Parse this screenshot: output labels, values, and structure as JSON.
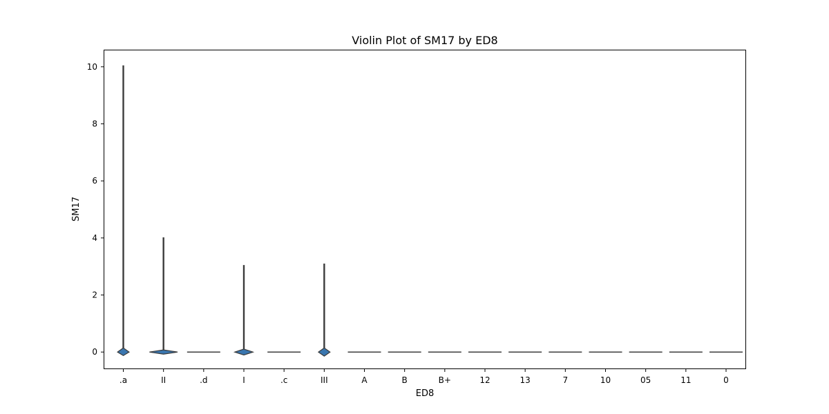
{
  "chart_data": {
    "type": "violin",
    "title": "Violin Plot of SM17 by ED8",
    "xlabel": "ED8",
    "ylabel": "SM17",
    "categories": [
      ".a",
      "II",
      ".d",
      "I",
      ".c",
      "III",
      "A",
      "B",
      "B+",
      "12",
      "13",
      "7",
      "10",
      "05",
      "11",
      "0"
    ],
    "y_ticks": [
      0,
      2,
      4,
      6,
      8,
      10
    ],
    "ylim": [
      -0.6,
      10.6
    ],
    "grid": false,
    "violins": [
      {
        "category": ".a",
        "min": 0,
        "max": 10.05,
        "bulge": 0.35,
        "bulge_low": -0.1,
        "bulge_high": 0.12
      },
      {
        "category": "II",
        "min": 0,
        "max": 4.02,
        "bulge": 0.85,
        "bulge_low": -0.05,
        "bulge_high": 0.05
      },
      {
        "category": ".d",
        "min": 0,
        "max": 0,
        "bulge": 0,
        "bulge_low": 0,
        "bulge_high": 0
      },
      {
        "category": "I",
        "min": 0,
        "max": 3.05,
        "bulge": 0.55,
        "bulge_low": -0.08,
        "bulge_high": 0.08
      },
      {
        "category": ".c",
        "min": 0,
        "max": 0,
        "bulge": 0,
        "bulge_low": 0,
        "bulge_high": 0
      },
      {
        "category": "III",
        "min": 0,
        "max": 3.1,
        "bulge": 0.35,
        "bulge_low": -0.12,
        "bulge_high": 0.12
      },
      {
        "category": "A",
        "min": 0,
        "max": 0,
        "bulge": 0,
        "bulge_low": 0,
        "bulge_high": 0
      },
      {
        "category": "B",
        "min": 0,
        "max": 0,
        "bulge": 0,
        "bulge_low": 0,
        "bulge_high": 0
      },
      {
        "category": "B+",
        "min": 0,
        "max": 0,
        "bulge": 0,
        "bulge_low": 0,
        "bulge_high": 0
      },
      {
        "category": "12",
        "min": 0,
        "max": 0,
        "bulge": 0,
        "bulge_low": 0,
        "bulge_high": 0
      },
      {
        "category": "13",
        "min": 0,
        "max": 0,
        "bulge": 0,
        "bulge_low": 0,
        "bulge_high": 0
      },
      {
        "category": "7",
        "min": 0,
        "max": 0,
        "bulge": 0,
        "bulge_low": 0,
        "bulge_high": 0
      },
      {
        "category": "10",
        "min": 0,
        "max": 0,
        "bulge": 0,
        "bulge_low": 0,
        "bulge_high": 0
      },
      {
        "category": "05",
        "min": 0,
        "max": 0,
        "bulge": 0,
        "bulge_low": 0,
        "bulge_high": 0
      },
      {
        "category": "11",
        "min": 0,
        "max": 0,
        "bulge": 0,
        "bulge_low": 0,
        "bulge_high": 0
      },
      {
        "category": "0",
        "min": 0,
        "max": 0,
        "bulge": 0,
        "bulge_low": 0,
        "bulge_high": 0
      }
    ],
    "colors": {
      "fill": "#3a76af",
      "edge": "#3b3b3b"
    }
  }
}
